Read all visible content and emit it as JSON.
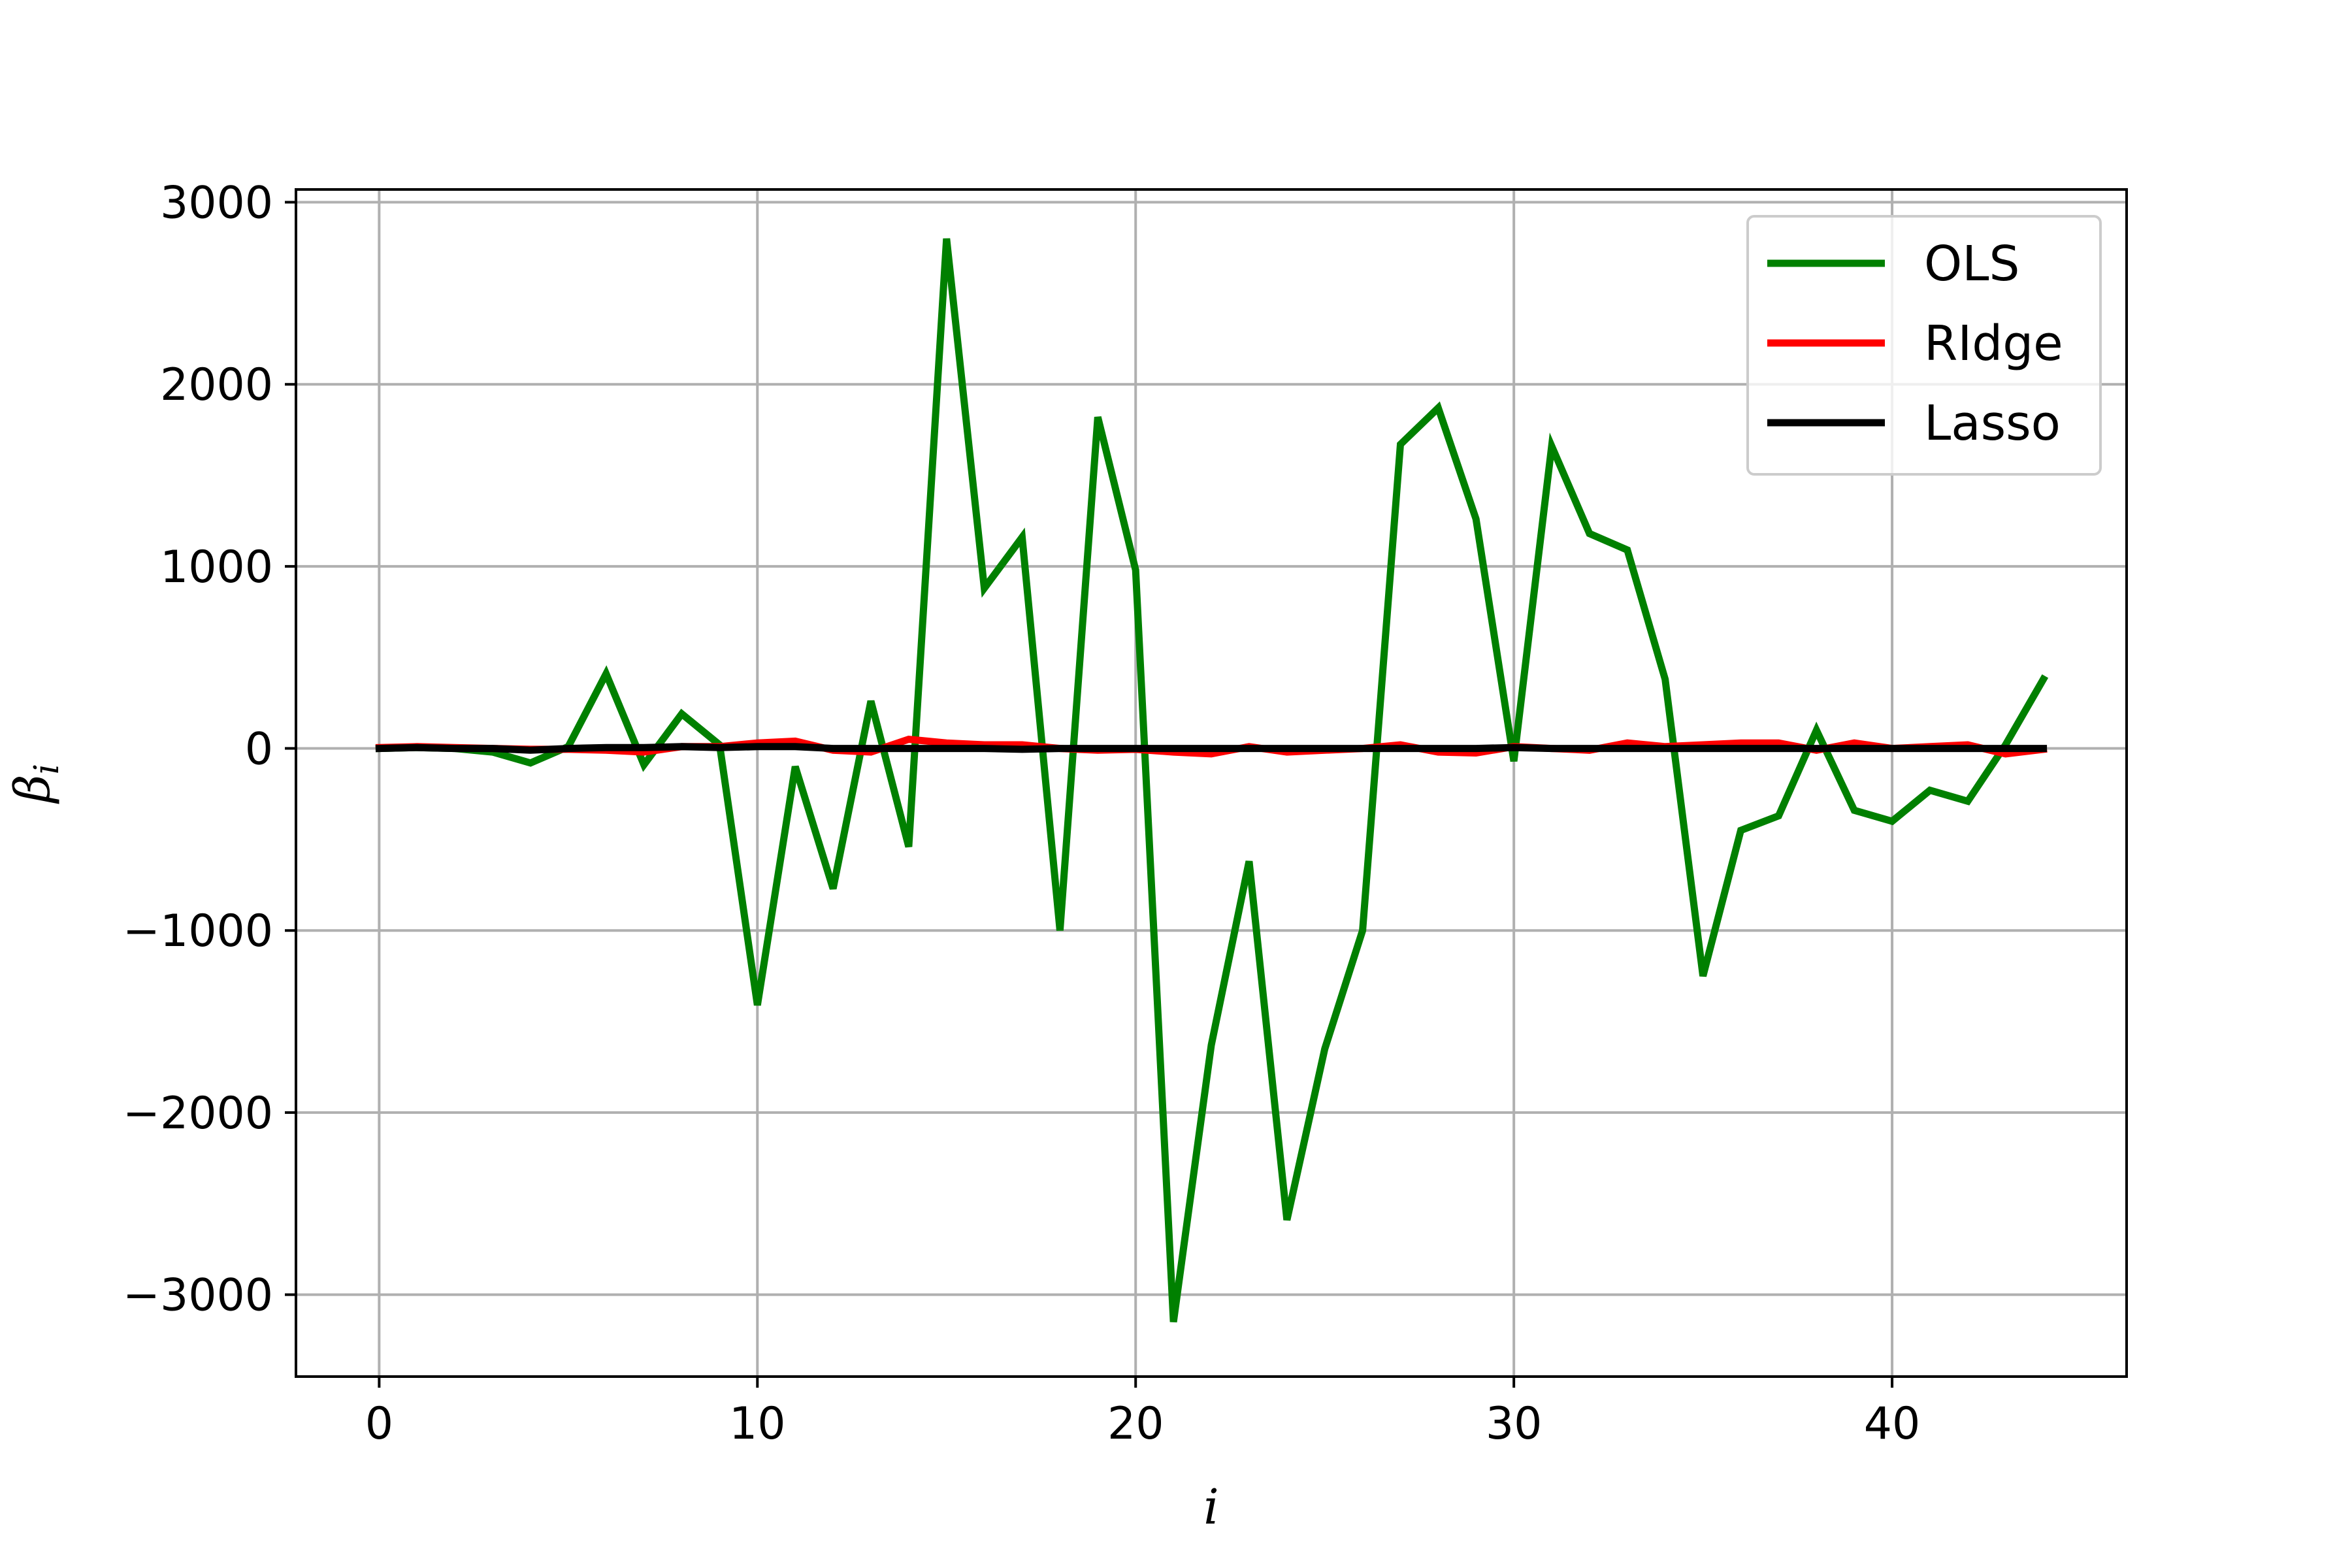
{
  "chart_data": {
    "type": "line",
    "title": "",
    "xlabel": "i",
    "ylabel": "β_i",
    "xlabel_display": "i",
    "ylabel_base": "β",
    "ylabel_sub": "i",
    "xlim": [
      -2.2,
      46.2
    ],
    "ylim": [
      -3450,
      3070
    ],
    "xticks": [
      0,
      10,
      20,
      30,
      40
    ],
    "xtick_labels": [
      "0",
      "10",
      "20",
      "30",
      "40"
    ],
    "yticks": [
      3000,
      2000,
      1000,
      0,
      -1000,
      -2000,
      -3000
    ],
    "ytick_labels": [
      "3000",
      "2000",
      "1000",
      "0",
      "−1000",
      "−2000",
      "−3000"
    ],
    "grid": true,
    "legend_position": "upper right",
    "x": [
      0,
      1,
      2,
      3,
      4,
      5,
      6,
      7,
      8,
      9,
      10,
      11,
      12,
      13,
      14,
      15,
      16,
      17,
      18,
      19,
      20,
      21,
      22,
      23,
      24,
      25,
      26,
      27,
      28,
      29,
      30,
      31,
      32,
      33,
      34,
      35,
      36,
      37,
      38,
      39,
      40,
      41,
      42,
      43,
      44
    ],
    "series": [
      {
        "name": "OLS",
        "color": "#008000",
        "values": [
          0,
          5,
          0,
          -20,
          -80,
          10,
          410,
          -90,
          190,
          20,
          -1410,
          -100,
          -770,
          260,
          -540,
          2800,
          880,
          1160,
          -1000,
          1820,
          980,
          -3150,
          -1630,
          -620,
          -2590,
          -1650,
          -1000,
          1670,
          1870,
          1260,
          -70,
          1660,
          1180,
          1090,
          380,
          -1250,
          -450,
          -370,
          100,
          -340,
          -400,
          -230,
          -290,
          20,
          380
        ]
      },
      {
        "name": "RIdge",
        "color": "#ff0000",
        "values": [
          5,
          10,
          5,
          0,
          -5,
          -5,
          -10,
          -20,
          10,
          10,
          30,
          40,
          -10,
          -20,
          50,
          30,
          20,
          20,
          0,
          -10,
          -5,
          -20,
          -30,
          10,
          -20,
          -10,
          0,
          20,
          -20,
          -25,
          10,
          0,
          -10,
          30,
          10,
          20,
          30,
          30,
          -10,
          30,
          0,
          10,
          20,
          -30,
          -5
        ]
      },
      {
        "name": "Lasso",
        "color": "#000000",
        "values": [
          0,
          5,
          0,
          0,
          -10,
          0,
          5,
          5,
          10,
          5,
          10,
          10,
          0,
          0,
          0,
          0,
          0,
          -5,
          0,
          0,
          0,
          0,
          0,
          0,
          0,
          0,
          0,
          0,
          0,
          0,
          5,
          0,
          0,
          0,
          0,
          0,
          0,
          0,
          0,
          0,
          0,
          0,
          0,
          0,
          0
        ]
      }
    ]
  }
}
